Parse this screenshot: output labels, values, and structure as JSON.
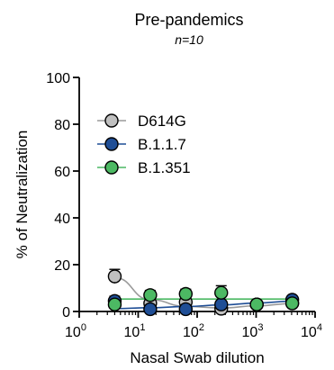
{
  "chart_data": {
    "type": "scatter",
    "title": "Pre-pandemics",
    "subtitle": "n=10",
    "xlabel": "Nasal Swab dilution",
    "ylabel": "% of Neutralization",
    "x_scale": "log10",
    "xlim": [
      1,
      10000
    ],
    "ylim": [
      0,
      100
    ],
    "x_ticks": [
      {
        "base": "10",
        "exp": "0"
      },
      {
        "base": "10",
        "exp": "1"
      },
      {
        "base": "10",
        "exp": "2"
      },
      {
        "base": "10",
        "exp": "3"
      },
      {
        "base": "10",
        "exp": "4"
      }
    ],
    "y_ticks": [
      "0",
      "20",
      "40",
      "60",
      "80",
      "100"
    ],
    "legend_position": "upper-left",
    "series": [
      {
        "name": "D614G",
        "color": "#c0c0c0",
        "line_color": "#9a9a9a",
        "fit": "curve",
        "x": [
          4,
          16,
          64,
          256,
          1024,
          4096
        ],
        "y": [
          15,
          3.5,
          4,
          1.2,
          3,
          3.5
        ],
        "err": [
          3,
          1.5,
          2,
          1.5,
          1.2,
          1.5
        ],
        "fit_y": [
          14.5,
          5,
          2.2,
          1.5,
          2.4,
          3.4
        ]
      },
      {
        "name": "B.1.1.7",
        "color": "#1f4e96",
        "line_color": "#1f4e96",
        "fit": "curve",
        "x": [
          4,
          16,
          64,
          256,
          1024,
          4096
        ],
        "y": [
          4.5,
          1,
          1,
          3,
          3,
          5
        ],
        "err": [
          2,
          0.8,
          0.8,
          1.5,
          1,
          1.5
        ],
        "fit_y": [
          1.2,
          1.6,
          2.1,
          2.8,
          3.6,
          4.4
        ]
      },
      {
        "name": "B.1.351",
        "color": "#4cb963",
        "line_color": "#4cb963",
        "fit": "flat",
        "x": [
          4,
          16,
          64,
          256,
          1024,
          4096
        ],
        "y": [
          3,
          7,
          7.5,
          8,
          3,
          3.5
        ],
        "err": [
          2,
          2,
          2,
          3,
          1,
          1.5
        ],
        "fit_y": [
          5.3,
          5.3,
          5.3,
          5.3,
          5.3,
          5.3
        ]
      }
    ]
  }
}
